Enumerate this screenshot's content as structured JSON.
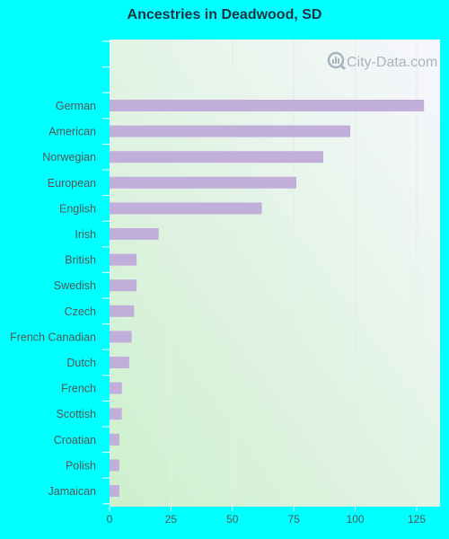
{
  "chart_data": {
    "type": "bar",
    "orientation": "horizontal",
    "title": "Ancestries in Deadwood, SD",
    "categories": [
      "German",
      "American",
      "Norwegian",
      "European",
      "English",
      "Irish",
      "British",
      "Swedish",
      "Czech",
      "French Canadian",
      "Dutch",
      "French",
      "Scottish",
      "Croatian",
      "Polish",
      "Jamaican"
    ],
    "values": [
      128,
      98,
      87,
      76,
      62,
      20,
      11,
      11,
      10,
      9,
      8,
      5,
      5,
      4,
      4,
      4
    ],
    "xlim": [
      0,
      135
    ],
    "xticks": [
      0,
      25,
      50,
      75,
      100,
      125
    ],
    "xlabel": "",
    "ylabel": "",
    "grid": true,
    "legend": "none"
  },
  "watermark": {
    "text": "City-Data.com"
  },
  "colors": {
    "background": "#00ffff",
    "bar": "#c2aedb",
    "plot_bg_top": "#f6f8fd",
    "plot_bg_bottom": "#cff1cf",
    "tick_text": "#555555",
    "grid": "#e6ece6",
    "watermark": "#a9b4bf"
  }
}
